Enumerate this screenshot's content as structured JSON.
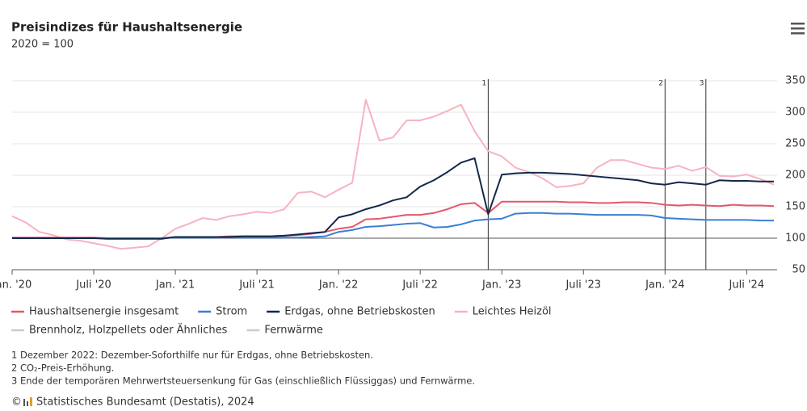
{
  "chart_data": {
    "type": "line",
    "title": "Preisindizes für Haushaltsenergie",
    "subtitle": "2020 = 100",
    "categories": [
      "Jan. '20",
      null,
      null,
      null,
      null,
      null,
      "Juli '20",
      null,
      null,
      null,
      null,
      null,
      "Jan. '21",
      null,
      null,
      null,
      null,
      null,
      "Juli '21",
      null,
      null,
      null,
      null,
      null,
      "Jan. '22",
      null,
      null,
      null,
      null,
      null,
      "Juli '22",
      null,
      null,
      null,
      null,
      null,
      "Jan. '23",
      null,
      null,
      null,
      null,
      null,
      "Juli '23",
      null,
      null,
      null,
      null,
      null,
      "Jan. '24",
      null,
      null,
      null,
      null,
      null,
      "Juli '24",
      null,
      null
    ],
    "ylim": [
      50,
      350
    ],
    "yticks": [
      50,
      100,
      150,
      200,
      250,
      300,
      350
    ],
    "grid": true,
    "baseline": 100,
    "series": [
      {
        "name": "Haushaltsenergie insgesamt",
        "color": "#e5576b",
        "values": [
          101,
          101,
          101,
          101,
          101,
          101,
          101,
          100,
          100,
          100,
          100,
          100,
          102,
          102,
          102,
          102,
          103,
          103,
          103,
          103,
          104,
          105,
          107,
          110,
          115,
          118,
          130,
          131,
          134,
          137,
          137,
          140,
          146,
          154,
          156,
          140,
          158,
          158,
          158,
          158,
          158,
          157,
          157,
          156,
          156,
          157,
          157,
          156,
          153,
          152,
          153,
          152,
          151,
          153,
          152,
          152,
          151
        ]
      },
      {
        "name": "Strom",
        "color": "#3a7fd5",
        "values": [
          100,
          100,
          100,
          100,
          100,
          100,
          100,
          100,
          100,
          100,
          100,
          100,
          101,
          101,
          101,
          101,
          101,
          101,
          101,
          101,
          101,
          101,
          102,
          103,
          110,
          113,
          118,
          119,
          121,
          123,
          124,
          117,
          118,
          122,
          128,
          130,
          131,
          139,
          140,
          140,
          139,
          139,
          138,
          137,
          137,
          137,
          137,
          136,
          132,
          131,
          130,
          129,
          129,
          129,
          129,
          128,
          128
        ]
      },
      {
        "name": "Erdgas, ohne Betriebskosten",
        "color": "#13284b",
        "values": [
          100,
          100,
          100,
          100,
          100,
          100,
          100,
          99,
          99,
          99,
          99,
          99,
          102,
          102,
          102,
          102,
          102,
          103,
          103,
          103,
          104,
          106,
          108,
          110,
          133,
          138,
          146,
          152,
          160,
          165,
          182,
          192,
          205,
          220,
          227,
          138,
          201,
          203,
          204,
          204,
          203,
          202,
          200,
          198,
          196,
          194,
          192,
          187,
          185,
          189,
          187,
          185,
          192,
          191,
          191,
          190,
          190
        ]
      },
      {
        "name": "Leichtes Heizöl",
        "color": "#f7b3c0",
        "values": [
          135,
          125,
          110,
          105,
          98,
          96,
          92,
          88,
          83,
          85,
          87,
          100,
          115,
          123,
          132,
          129,
          135,
          138,
          142,
          140,
          146,
          172,
          174,
          165,
          177,
          188,
          320,
          255,
          260,
          287,
          287,
          293,
          302,
          312,
          270,
          238,
          230,
          212,
          205,
          195,
          181,
          183,
          187,
          212,
          224,
          224,
          218,
          212,
          210,
          215,
          207,
          213,
          199,
          198,
          201,
          194,
          185
        ]
      }
    ],
    "hidden_series": [
      "Brennholz, Holzpellets oder Ähnliches",
      "Fernwärme"
    ],
    "annotations": [
      {
        "index": 35,
        "label": "1"
      },
      {
        "index": 48,
        "label": "2"
      },
      {
        "index": 51,
        "label": "3"
      }
    ],
    "notes": [
      "1 Dezember 2022: Dezember-Soforthilfe nur für Erdgas, ohne Betriebskosten.",
      "2 CO₂-Preis-Erhöhung.",
      "3 Ende der temporären Mehrwertsteuersenkung für Gas (einschließlich Flüssiggas) und Fernwärme."
    ],
    "source": "Statistisches Bundesamt (Destatis), 2024"
  }
}
